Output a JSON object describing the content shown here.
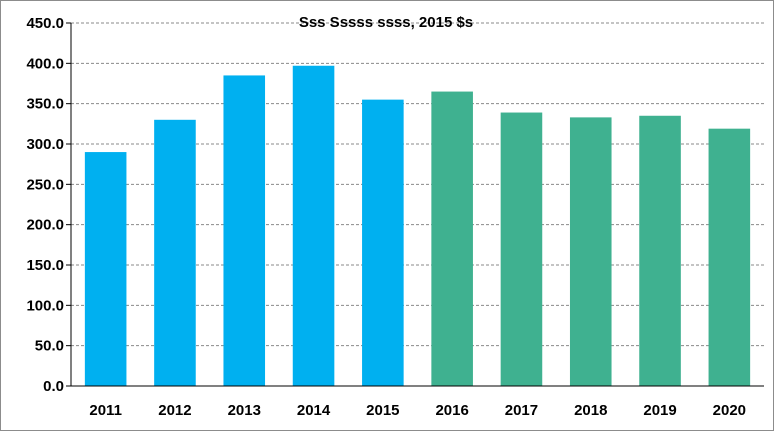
{
  "chart_data": {
    "type": "bar",
    "title": "Sss Sssss ssss, 2015 $s",
    "xlabel": "",
    "ylabel": "",
    "categories": [
      "2011",
      "2012",
      "2013",
      "2014",
      "2015",
      "2016",
      "2017",
      "2018",
      "2019",
      "2020"
    ],
    "values": [
      290,
      330,
      385,
      397,
      355,
      365,
      339,
      333,
      335,
      319
    ],
    "bar_colors": [
      "#00b0f0",
      "#00b0f0",
      "#00b0f0",
      "#00b0f0",
      "#00b0f0",
      "#3fb190",
      "#3fb190",
      "#3fb190",
      "#3fb190",
      "#3fb190"
    ],
    "ylim": [
      0,
      450
    ],
    "yticks": [
      "0.0",
      "50.0",
      "100.0",
      "150.0",
      "200.0",
      "250.0",
      "300.0",
      "350.0",
      "400.0",
      "450.0"
    ],
    "grid": true,
    "legend": "none"
  }
}
